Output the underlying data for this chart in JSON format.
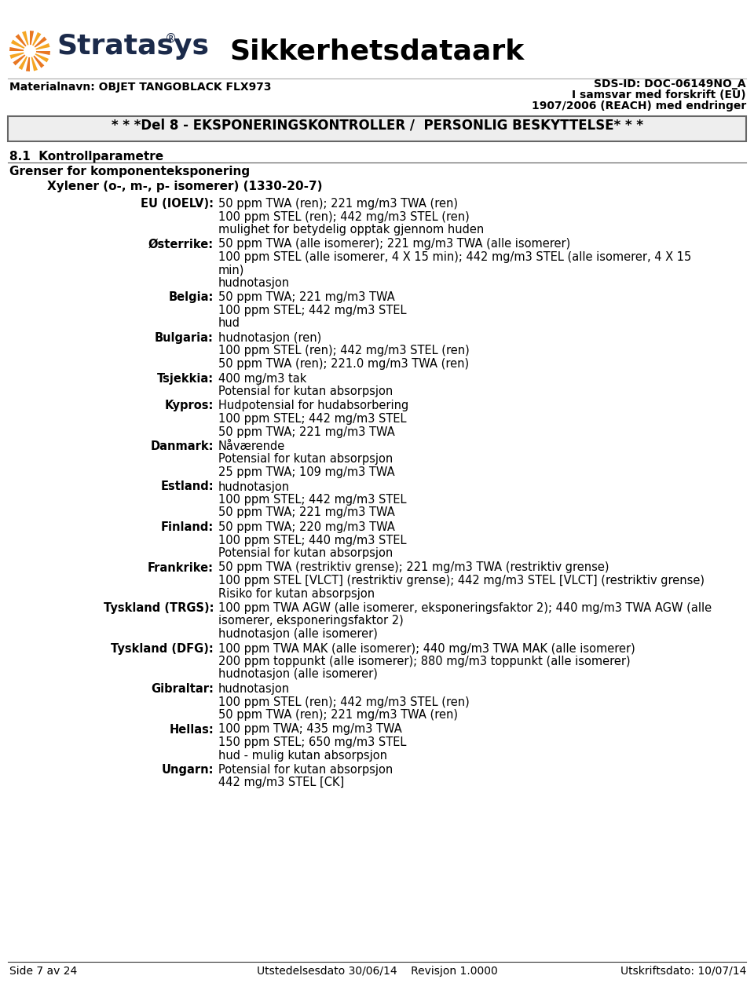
{
  "page_title": "Sikkerhetsdataark",
  "material_left": "Materialnavn: OBJET TANGOBLACK FLX973",
  "sds_right_line1": "SDS-ID: DOC-06149NO_A",
  "sds_right_line2": "I samsvar med forskrift (EU)",
  "sds_right_line3": "1907/2006 (REACH) med endringer",
  "section_header": "* * *Del 8 - EKSPONERINGSKONTROLLER /  PERSONLIG BESKYTTELSE* * *",
  "section_title": "8.1  Kontrollparametre",
  "subsection_title": "Grenser for komponenteksponering",
  "compound_title": "Xylener (o-, m-, p- isomerer) (1330-20-7)",
  "entries": [
    {
      "label": "EU (IOELV):",
      "lines": [
        "50 ppm TWA (ren); 221 mg/m3 TWA (ren)",
        "100 ppm STEL (ren); 442 mg/m3 STEL (ren)",
        "mulighet for betydelig opptak gjennom huden"
      ]
    },
    {
      "label": "Østerrike:",
      "lines": [
        "50 ppm TWA (alle isomerer); 221 mg/m3 TWA (alle isomerer)",
        "100 ppm STEL (alle isomerer, 4 X 15 min); 442 mg/m3 STEL (alle isomerer, 4 X 15",
        "min)",
        "hudnotasjon"
      ]
    },
    {
      "label": "Belgia:",
      "lines": [
        "50 ppm TWA; 221 mg/m3 TWA",
        "100 ppm STEL; 442 mg/m3 STEL",
        "hud"
      ]
    },
    {
      "label": "Bulgaria:",
      "lines": [
        "hudnotasjon (ren)",
        "100 ppm STEL (ren); 442 mg/m3 STEL (ren)",
        "50 ppm TWA (ren); 221.0 mg/m3 TWA (ren)"
      ]
    },
    {
      "label": "Tsjekkia:",
      "lines": [
        "400 mg/m3 tak",
        "Potensial for kutan absorpsjon"
      ]
    },
    {
      "label": "Kypros:",
      "lines": [
        "Hudpotensial for hudabsorbering",
        "100 ppm STEL; 442 mg/m3 STEL",
        "50 ppm TWA; 221 mg/m3 TWA"
      ]
    },
    {
      "label": "Danmark:",
      "lines": [
        "Nåværende",
        "Potensial for kutan absorpsjon",
        "25 ppm TWA; 109 mg/m3 TWA"
      ]
    },
    {
      "label": "Estland:",
      "lines": [
        "hudnotasjon",
        "100 ppm STEL; 442 mg/m3 STEL",
        "50 ppm TWA; 221 mg/m3 TWA"
      ]
    },
    {
      "label": "Finland:",
      "lines": [
        "50 ppm TWA; 220 mg/m3 TWA",
        "100 ppm STEL; 440 mg/m3 STEL",
        "Potensial for kutan absorpsjon"
      ]
    },
    {
      "label": "Frankrike:",
      "lines": [
        "50 ppm TWA (restriktiv grense); 221 mg/m3 TWA (restriktiv grense)",
        "100 ppm STEL [VLCT] (restriktiv grense); 442 mg/m3 STEL [VLCT] (restriktiv grense)",
        "Risiko for kutan absorpsjon"
      ]
    },
    {
      "label": "Tyskland (TRGS):",
      "lines": [
        "100 ppm TWA AGW (alle isomerer, eksponeringsfaktor 2); 440 mg/m3 TWA AGW (alle",
        "isomerer, eksponeringsfaktor 2)",
        "hudnotasjon (alle isomerer)"
      ]
    },
    {
      "label": "Tyskland (DFG):",
      "lines": [
        "100 ppm TWA MAK (alle isomerer); 440 mg/m3 TWA MAK (alle isomerer)",
        "200 ppm toppunkt (alle isomerer); 880 mg/m3 toppunkt (alle isomerer)",
        "hudnotasjon (alle isomerer)"
      ]
    },
    {
      "label": "Gibraltar:",
      "lines": [
        "hudnotasjon",
        "100 ppm STEL (ren); 442 mg/m3 STEL (ren)",
        "50 ppm TWA (ren); 221 mg/m3 TWA (ren)"
      ]
    },
    {
      "label": "Hellas:",
      "lines": [
        "100 ppm TWA; 435 mg/m3 TWA",
        "150 ppm STEL; 650 mg/m3 STEL",
        "hud - mulig kutan absorpsjon"
      ]
    },
    {
      "label": "Ungarn:",
      "lines": [
        "Potensial for kutan absorpsjon",
        "442 mg/m3 STEL [CK]"
      ]
    }
  ],
  "footer_left": "Side 7 av 24",
  "footer_center": "Utstedelsesdato 30/06/14    Revisjon 1.0000",
  "footer_right": "Utskriftsdato: 10/07/14",
  "bg_color": "#ffffff",
  "text_color": "#000000"
}
